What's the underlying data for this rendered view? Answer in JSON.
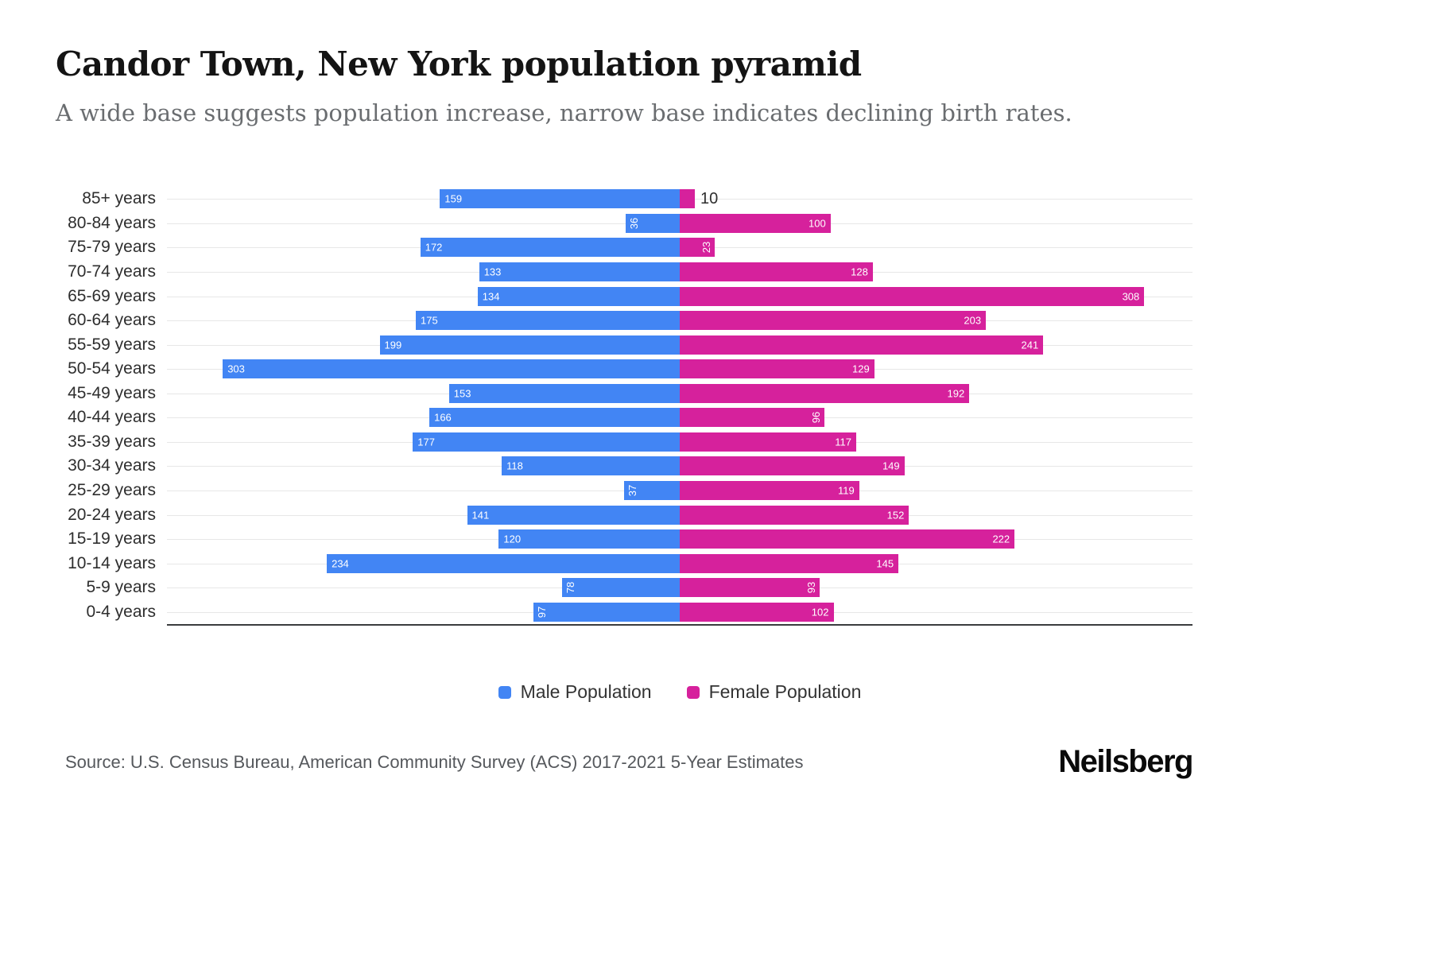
{
  "header": {
    "title": "Candor Town, New York population pyramid",
    "subtitle": "A wide base suggests population increase, narrow base indicates declining birth rates."
  },
  "legend": {
    "male_label": "Male Population",
    "female_label": "Female Population"
  },
  "footer": {
    "source": "Source: U.S. Census Bureau, American Community Survey (ACS) 2017-2021 5-Year Estimates",
    "brand": "Neilsberg"
  },
  "colors": {
    "male": "#4285f4",
    "female": "#d6219c",
    "grid": "#e7e7e7",
    "axis": "#3a3c3e"
  },
  "chart_data": {
    "type": "bar",
    "orientation": "horizontal population pyramid (male left, female right)",
    "title": "Candor Town, New York population pyramid",
    "categories": [
      "85+ years",
      "80-84 years",
      "75-79 years",
      "70-74 years",
      "65-69 years",
      "60-64 years",
      "55-59 years",
      "50-54 years",
      "45-49 years",
      "40-44 years",
      "35-39 years",
      "30-34 years",
      "25-29 years",
      "20-24 years",
      "15-19 years",
      "10-14 years",
      "5-9 years",
      "0-4 years"
    ],
    "series": [
      {
        "name": "Male Population",
        "color": "#4285f4",
        "values": [
          159,
          36,
          172,
          133,
          134,
          175,
          199,
          303,
          153,
          166,
          177,
          118,
          37,
          141,
          120,
          234,
          78,
          97
        ]
      },
      {
        "name": "Female Population",
        "color": "#d6219c",
        "values": [
          10,
          100,
          23,
          128,
          308,
          203,
          241,
          129,
          192,
          96,
          117,
          149,
          119,
          152,
          222,
          145,
          93,
          102
        ]
      }
    ],
    "xlim": [
      0,
      340
    ],
    "grid": "horizontal category gridlines only",
    "legend_position": "bottom-center",
    "value_labels": "inside bar ends, white; rotated 90deg when value < 100; outside in dark when value <= 15"
  }
}
